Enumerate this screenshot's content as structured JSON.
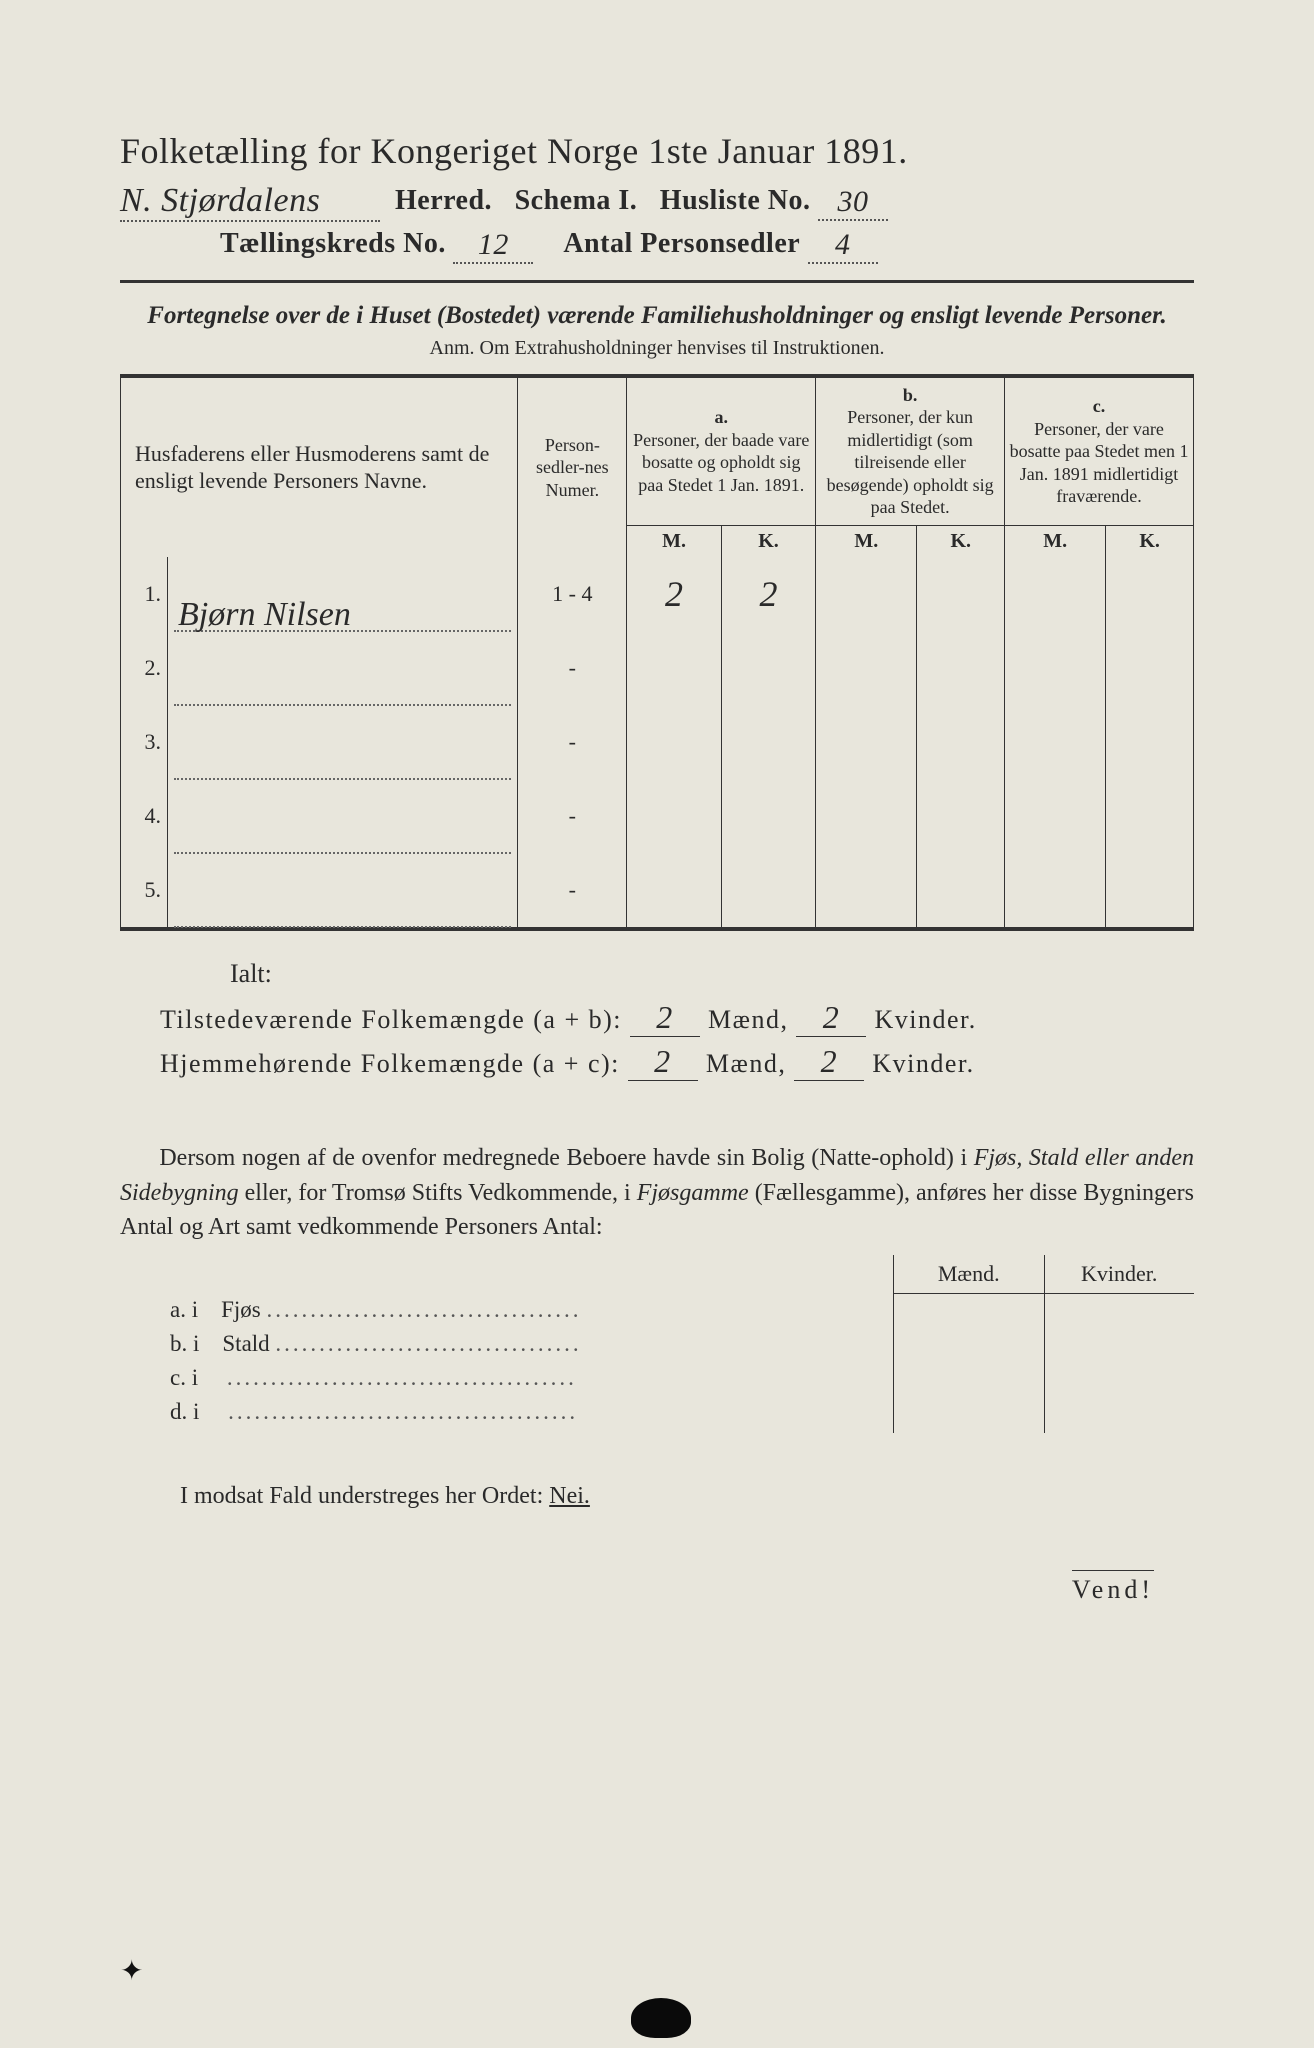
{
  "title": "Folketælling for Kongeriget Norge 1ste Januar 1891.",
  "header": {
    "herred_value": "N. Stjørdalens",
    "herred_label": "Herred.",
    "schema_label": "Schema I.",
    "husliste_label": "Husliste No.",
    "husliste_value": "30",
    "kreds_label": "Tællingskreds No.",
    "kreds_value": "12",
    "antal_label": "Antal Personsedler",
    "antal_value": "4"
  },
  "subhead": "Fortegnelse over de i Huset (Bostedet) værende Familiehusholdninger og ensligt levende Personer.",
  "anm": "Anm.  Om Extrahusholdninger henvises til Instruktionen.",
  "table": {
    "col_name": "Husfaderens eller Husmoderens samt de ensligt levende Personers Navne.",
    "col_numer": "Person-sedler-nes Numer.",
    "col_a_label": "a.",
    "col_a": "Personer, der baade vare bosatte og opholdt sig paa Stedet 1 Jan. 1891.",
    "col_b_label": "b.",
    "col_b": "Personer, der kun midlertidigt (som tilreisende eller besøgende) opholdt sig paa Stedet.",
    "col_c_label": "c.",
    "col_c": "Personer, der vare bosatte paa Stedet men 1 Jan. 1891 midlertidigt fraværende.",
    "M": "M.",
    "K": "K.",
    "rows": [
      {
        "n": "1.",
        "name": "Bjørn Nilsen",
        "numer": "1 - 4",
        "aM": "2",
        "aK": "2",
        "bM": "",
        "bK": "",
        "cM": "",
        "cK": ""
      },
      {
        "n": "2.",
        "name": "",
        "numer": "-",
        "aM": "",
        "aK": "",
        "bM": "",
        "bK": "",
        "cM": "",
        "cK": ""
      },
      {
        "n": "3.",
        "name": "",
        "numer": "-",
        "aM": "",
        "aK": "",
        "bM": "",
        "bK": "",
        "cM": "",
        "cK": ""
      },
      {
        "n": "4.",
        "name": "",
        "numer": "-",
        "aM": "",
        "aK": "",
        "bM": "",
        "bK": "",
        "cM": "",
        "cK": ""
      },
      {
        "n": "5.",
        "name": "",
        "numer": "-",
        "aM": "",
        "aK": "",
        "bM": "",
        "bK": "",
        "cM": "",
        "cK": ""
      }
    ]
  },
  "ialt": "Ialt:",
  "totals": {
    "line1_label": "Tilstedeværende Folkemængde (a + b):",
    "line1_m": "2",
    "line1_k": "2",
    "line2_label": "Hjemmehørende Folkemængde (a + c):",
    "line2_m": "2",
    "line2_k": "2",
    "maend": "Mænd,",
    "kvinder": "Kvinder."
  },
  "para": {
    "p1": "Dersom nogen af de ovenfor medregnede Beboere havde sin Bolig (Natte-ophold) i ",
    "p1i": "Fjøs, Stald eller anden Sidebygning",
    "p2": " eller, for Tromsø Stifts Vedkommende, i ",
    "p2i": "Fjøsgamme",
    "p3": " (Fællesgamme), anføres her disse Bygningers Antal og Art samt vedkommende Personers Antal:"
  },
  "side": {
    "maend": "Mænd.",
    "kvinder": "Kvinder.",
    "rows": [
      {
        "l": "a.  i",
        "t": "Fjøs"
      },
      {
        "l": "b.  i",
        "t": "Stald"
      },
      {
        "l": "c.  i",
        "t": ""
      },
      {
        "l": "d.  i",
        "t": ""
      }
    ]
  },
  "modsat": {
    "pre": "I modsat Fald understreges her Ordet: ",
    "nei": "Nei."
  },
  "vend": "Vend!",
  "colors": {
    "paper": "#e8e6dc",
    "ink": "#2a2a2a",
    "bg": "#1a1a1a"
  }
}
